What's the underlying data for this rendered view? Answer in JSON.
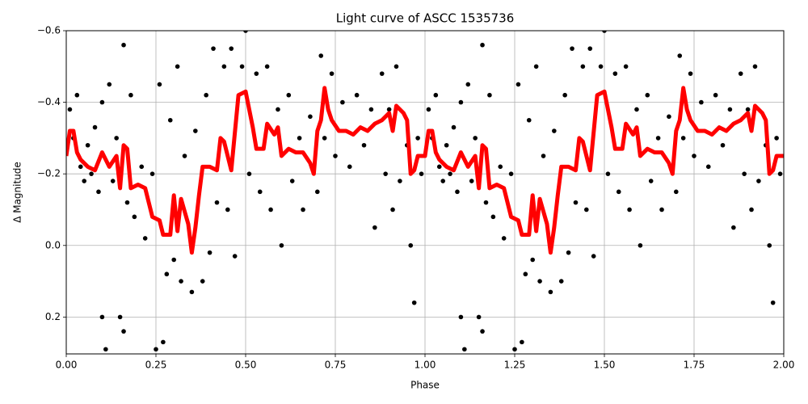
{
  "chart_data": {
    "type": "scatter",
    "title": "Light curve of ASCC 1535736",
    "x_label": "Phase",
    "y_label": "Δ Magnitude",
    "xlim": [
      0,
      2
    ],
    "ylim": [
      0.303,
      -0.6
    ],
    "xticks": [
      {
        "value": 0,
        "label": "0.00"
      },
      {
        "value": 0.25,
        "label": "0.25"
      },
      {
        "value": 0.5,
        "label": "0.50"
      },
      {
        "value": 0.75,
        "label": "0.75"
      },
      {
        "value": 1,
        "label": "1.00"
      },
      {
        "value": 1.25,
        "label": "1.25"
      },
      {
        "value": 1.5,
        "label": "1.50"
      },
      {
        "value": 1.75,
        "label": "1.75"
      },
      {
        "value": 2,
        "label": "2.00"
      }
    ],
    "yticks": [
      {
        "value": -0.6,
        "label": "−0.6"
      },
      {
        "value": -0.4,
        "label": "−0.4"
      },
      {
        "value": -0.2,
        "label": "−0.2"
      },
      {
        "value": 0,
        "label": "0.0"
      },
      0.2
    ],
    "grid": true,
    "series": [
      {
        "type": "scatter",
        "color": "#000000",
        "x": [
          0.01,
          0.02,
          0.03,
          0.04,
          0.05,
          0.06,
          0.07,
          0.08,
          0.09,
          0.1,
          0.1,
          0.11,
          0.12,
          0.13,
          0.14,
          0.15,
          0.16,
          0.16,
          0.17,
          0.18,
          0.19,
          0.21,
          0.22,
          0.24,
          0.25,
          0.26,
          0.27,
          0.28,
          0.29,
          0.3,
          0.31,
          0.32,
          0.33,
          0.35,
          0.36,
          0.38,
          0.39,
          0.4,
          0.41,
          0.42,
          0.44,
          0.45,
          0.46,
          0.47,
          0.49,
          0.5,
          0.51,
          0.53,
          0.54,
          0.56,
          0.57,
          0.59,
          0.6,
          0.62,
          0.63,
          0.65,
          0.66,
          0.68,
          0.7,
          0.71,
          0.72,
          0.74,
          0.75,
          0.77,
          0.79,
          0.81,
          0.83,
          0.85,
          0.86,
          0.88,
          0.89,
          0.9,
          0.91,
          0.92,
          0.93,
          0.95,
          0.96,
          0.97,
          0.98,
          0.99,
          1.01,
          1.02,
          1.03,
          1.04,
          1.05,
          1.06,
          1.07,
          1.08,
          1.09,
          1.1,
          1.1,
          1.11,
          1.12,
          1.13,
          1.14,
          1.15,
          1.16,
          1.16,
          1.17,
          1.18,
          1.19,
          1.21,
          1.22,
          1.24,
          1.25,
          1.26,
          1.27,
          1.28,
          1.29,
          1.3,
          1.31,
          1.32,
          1.33,
          1.35,
          1.36,
          1.38,
          1.39,
          1.4,
          1.41,
          1.42,
          1.44,
          1.45,
          1.46,
          1.47,
          1.49,
          1.5,
          1.51,
          1.53,
          1.54,
          1.56,
          1.57,
          1.59,
          1.6,
          1.62,
          1.63,
          1.65,
          1.66,
          1.68,
          1.7,
          1.71,
          1.72,
          1.74,
          1.75,
          1.77,
          1.79,
          1.81,
          1.83,
          1.85,
          1.86,
          1.88,
          1.89,
          1.9,
          1.91,
          1.92,
          1.93,
          1.95,
          1.96,
          1.97,
          1.98,
          1.99
        ],
        "values": [
          -0.38,
          -0.3,
          -0.42,
          -0.22,
          -0.18,
          -0.28,
          -0.2,
          -0.33,
          -0.15,
          -0.4,
          0.2,
          0.29,
          -0.45,
          -0.18,
          -0.3,
          0.2,
          -0.56,
          0.24,
          -0.12,
          -0.42,
          -0.08,
          -0.22,
          -0.02,
          -0.2,
          0.29,
          -0.45,
          0.27,
          0.08,
          -0.35,
          0.04,
          -0.5,
          0.1,
          -0.25,
          0.13,
          -0.32,
          0.1,
          -0.42,
          0.02,
          -0.55,
          -0.12,
          -0.5,
          -0.1,
          -0.55,
          0.03,
          -0.5,
          -0.6,
          -0.2,
          -0.48,
          -0.15,
          -0.5,
          -0.1,
          -0.38,
          0.0,
          -0.42,
          -0.18,
          -0.3,
          -0.1,
          -0.36,
          -0.15,
          -0.53,
          -0.3,
          -0.48,
          -0.25,
          -0.4,
          -0.22,
          -0.42,
          -0.28,
          -0.38,
          -0.05,
          -0.48,
          -0.2,
          -0.38,
          -0.1,
          -0.5,
          -0.18,
          -0.28,
          0.0,
          0.16,
          -0.3,
          -0.2,
          -0.38,
          -0.3,
          -0.42,
          -0.22,
          -0.18,
          -0.28,
          -0.2,
          -0.33,
          -0.15,
          -0.4,
          0.2,
          0.29,
          -0.45,
          -0.18,
          -0.3,
          0.2,
          -0.56,
          0.24,
          -0.12,
          -0.42,
          -0.08,
          -0.22,
          -0.02,
          -0.2,
          0.29,
          -0.45,
          0.27,
          0.08,
          -0.35,
          0.04,
          -0.5,
          0.1,
          -0.25,
          0.13,
          -0.32,
          0.1,
          -0.42,
          0.02,
          -0.55,
          -0.12,
          -0.5,
          -0.1,
          -0.55,
          0.03,
          -0.5,
          -0.6,
          -0.2,
          -0.48,
          -0.15,
          -0.5,
          -0.1,
          -0.38,
          0.0,
          -0.42,
          -0.18,
          -0.3,
          -0.1,
          -0.36,
          -0.15,
          -0.53,
          -0.3,
          -0.48,
          -0.25,
          -0.4,
          -0.22,
          -0.42,
          -0.28,
          -0.38,
          -0.05,
          -0.48,
          -0.2,
          -0.38,
          -0.1,
          -0.5,
          -0.18,
          -0.28,
          0.0,
          0.16,
          -0.3,
          -0.2
        ]
      },
      {
        "type": "line",
        "color": "#ff0000",
        "x": [
          0,
          0.01,
          0.02,
          0.03,
          0.04,
          0.06,
          0.08,
          0.1,
          0.12,
          0.14,
          0.15,
          0.16,
          0.17,
          0.18,
          0.2,
          0.22,
          0.23,
          0.24,
          0.26,
          0.27,
          0.29,
          0.3,
          0.31,
          0.32,
          0.34,
          0.35,
          0.36,
          0.37,
          0.38,
          0.4,
          0.42,
          0.43,
          0.44,
          0.46,
          0.48,
          0.5,
          0.51,
          0.52,
          0.53,
          0.55,
          0.56,
          0.58,
          0.59,
          0.6,
          0.62,
          0.64,
          0.66,
          0.68,
          0.69,
          0.7,
          0.71,
          0.72,
          0.73,
          0.74,
          0.76,
          0.78,
          0.8,
          0.82,
          0.84,
          0.86,
          0.88,
          0.9,
          0.91,
          0.92,
          0.94,
          0.95,
          0.96,
          0.97,
          0.98,
          1.0,
          1.01,
          1.02,
          1.03,
          1.04,
          1.06,
          1.08,
          1.1,
          1.12,
          1.14,
          1.15,
          1.16,
          1.17,
          1.18,
          1.2,
          1.22,
          1.23,
          1.24,
          1.26,
          1.27,
          1.29,
          1.3,
          1.31,
          1.32,
          1.34,
          1.35,
          1.36,
          1.37,
          1.38,
          1.4,
          1.42,
          1.43,
          1.44,
          1.46,
          1.48,
          1.5,
          1.51,
          1.52,
          1.53,
          1.55,
          1.56,
          1.58,
          1.59,
          1.6,
          1.62,
          1.64,
          1.66,
          1.68,
          1.69,
          1.7,
          1.71,
          1.72,
          1.73,
          1.74,
          1.76,
          1.78,
          1.8,
          1.82,
          1.84,
          1.86,
          1.88,
          1.9,
          1.91,
          1.92,
          1.94,
          1.95,
          1.96,
          1.97,
          1.98,
          2.0
        ],
        "values": [
          -0.25,
          -0.32,
          -0.32,
          -0.26,
          -0.24,
          -0.22,
          -0.21,
          -0.26,
          -0.22,
          -0.25,
          -0.16,
          -0.28,
          -0.27,
          -0.16,
          -0.17,
          -0.16,
          -0.12,
          -0.08,
          -0.07,
          -0.03,
          -0.03,
          -0.14,
          -0.04,
          -0.13,
          -0.06,
          0.02,
          -0.05,
          -0.14,
          -0.22,
          -0.22,
          -0.21,
          -0.3,
          -0.29,
          -0.21,
          -0.42,
          -0.43,
          -0.38,
          -0.33,
          -0.27,
          -0.27,
          -0.34,
          -0.31,
          -0.33,
          -0.25,
          -0.27,
          -0.26,
          -0.26,
          -0.23,
          -0.2,
          -0.32,
          -0.35,
          -0.44,
          -0.38,
          -0.35,
          -0.32,
          -0.32,
          -0.31,
          -0.33,
          -0.32,
          -0.34,
          -0.35,
          -0.37,
          -0.32,
          -0.39,
          -0.37,
          -0.35,
          -0.2,
          -0.21,
          -0.25,
          -0.25,
          -0.32,
          -0.32,
          -0.26,
          -0.24,
          -0.22,
          -0.21,
          -0.26,
          -0.22,
          -0.25,
          -0.16,
          -0.28,
          -0.27,
          -0.16,
          -0.17,
          -0.16,
          -0.12,
          -0.08,
          -0.07,
          -0.03,
          -0.03,
          -0.14,
          -0.04,
          -0.13,
          -0.06,
          0.02,
          -0.05,
          -0.14,
          -0.22,
          -0.22,
          -0.21,
          -0.3,
          -0.29,
          -0.21,
          -0.42,
          -0.43,
          -0.38,
          -0.33,
          -0.27,
          -0.27,
          -0.34,
          -0.31,
          -0.33,
          -0.25,
          -0.27,
          -0.26,
          -0.26,
          -0.23,
          -0.2,
          -0.32,
          -0.35,
          -0.44,
          -0.38,
          -0.35,
          -0.32,
          -0.32,
          -0.31,
          -0.33,
          -0.32,
          -0.34,
          -0.35,
          -0.37,
          -0.32,
          -0.39,
          -0.37,
          -0.35,
          -0.2,
          -0.21,
          -0.25,
          -0.25
        ]
      }
    ]
  }
}
